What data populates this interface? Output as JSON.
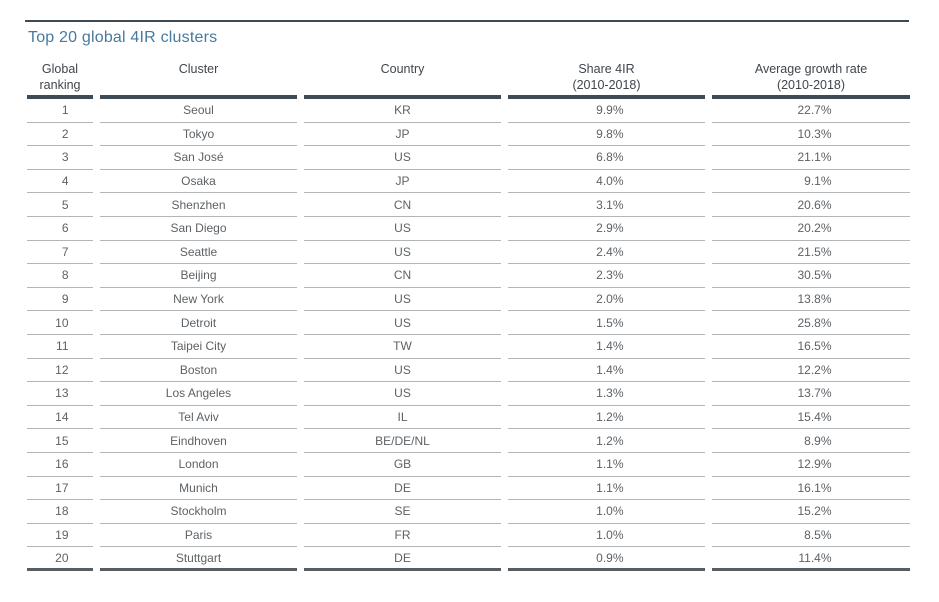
{
  "header": {
    "title": "Top 20 global 4IR clusters"
  },
  "table": {
    "columns": [
      {
        "id": "rank",
        "label": "Global\nranking"
      },
      {
        "id": "cluster",
        "label": "Cluster"
      },
      {
        "id": "country",
        "label": "Country"
      },
      {
        "id": "share",
        "label": "Share 4IR\n(2010-2018)"
      },
      {
        "id": "growth",
        "label": "Average growth rate\n(2010-2018)"
      }
    ],
    "rows": [
      {
        "rank": "1",
        "cluster": "Seoul",
        "country": "KR",
        "share": "9.9%",
        "growth": "22.7%"
      },
      {
        "rank": "2",
        "cluster": "Tokyo",
        "country": "JP",
        "share": "9.8%",
        "growth": "10.3%"
      },
      {
        "rank": "3",
        "cluster": "San José",
        "country": "US",
        "share": "6.8%",
        "growth": "21.1%"
      },
      {
        "rank": "4",
        "cluster": "Osaka",
        "country": "JP",
        "share": "4.0%",
        "growth": "9.1%"
      },
      {
        "rank": "5",
        "cluster": "Shenzhen",
        "country": "CN",
        "share": "3.1%",
        "growth": "20.6%"
      },
      {
        "rank": "6",
        "cluster": "San Diego",
        "country": "US",
        "share": "2.9%",
        "growth": "20.2%"
      },
      {
        "rank": "7",
        "cluster": "Seattle",
        "country": "US",
        "share": "2.4%",
        "growth": "21.5%"
      },
      {
        "rank": "8",
        "cluster": "Beijing",
        "country": "CN",
        "share": "2.3%",
        "growth": "30.5%"
      },
      {
        "rank": "9",
        "cluster": "New York",
        "country": "US",
        "share": "2.0%",
        "growth": "13.8%"
      },
      {
        "rank": "10",
        "cluster": "Detroit",
        "country": "US",
        "share": "1.5%",
        "growth": "25.8%"
      },
      {
        "rank": "11",
        "cluster": "Taipei City",
        "country": "TW",
        "share": "1.4%",
        "growth": "16.5%"
      },
      {
        "rank": "12",
        "cluster": "Boston",
        "country": "US",
        "share": "1.4%",
        "growth": "12.2%"
      },
      {
        "rank": "13",
        "cluster": "Los Angeles",
        "country": "US",
        "share": "1.3%",
        "growth": "13.7%"
      },
      {
        "rank": "14",
        "cluster": "Tel Aviv",
        "country": "IL",
        "share": "1.2%",
        "growth": "15.4%"
      },
      {
        "rank": "15",
        "cluster": "Eindhoven",
        "country": "BE/DE/NL",
        "share": "1.2%",
        "growth": "8.9%"
      },
      {
        "rank": "16",
        "cluster": "London",
        "country": "GB",
        "share": "1.1%",
        "growth": "12.9%"
      },
      {
        "rank": "17",
        "cluster": "Munich",
        "country": "DE",
        "share": "1.1%",
        "growth": "16.1%"
      },
      {
        "rank": "18",
        "cluster": "Stockholm",
        "country": "SE",
        "share": "1.0%",
        "growth": "15.2%"
      },
      {
        "rank": "19",
        "cluster": "Paris",
        "country": "FR",
        "share": "1.0%",
        "growth": "8.5%"
      },
      {
        "rank": "20",
        "cluster": "Stuttgart",
        "country": "DE",
        "share": "0.9%",
        "growth": "11.4%"
      }
    ]
  },
  "colors": {
    "title": "#477a9e",
    "rule_dark": "#3e4a54",
    "row_line": "#b3b5b7",
    "table_bottom": "#565e64",
    "page_rule": "#0d0d0d",
    "text": "#5d6266",
    "header_text": "#3f464d"
  }
}
